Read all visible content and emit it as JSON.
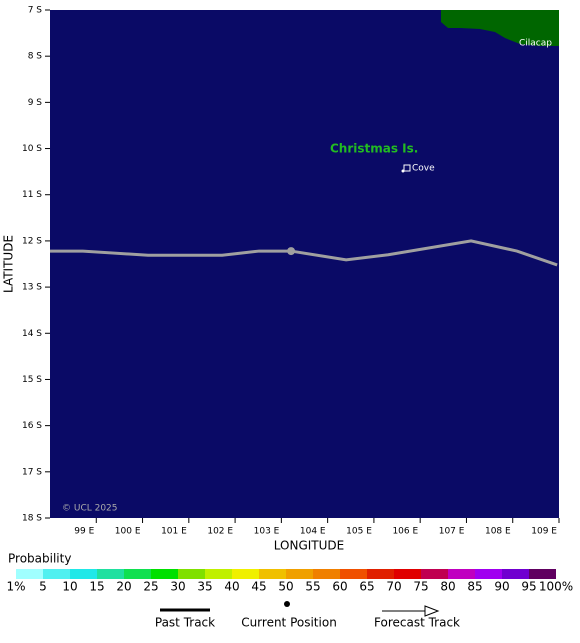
{
  "map": {
    "xlim": [
      98,
      109
    ],
    "ylim": [
      -7,
      -18
    ],
    "xticks": [
      {
        "value": 99,
        "label": "99 E"
      },
      {
        "value": 100,
        "label": "100 E"
      },
      {
        "value": 101,
        "label": "101 E"
      },
      {
        "value": 102,
        "label": "102 E"
      },
      {
        "value": 103,
        "label": "103 E"
      },
      {
        "value": 104,
        "label": "104 E"
      },
      {
        "value": 105,
        "label": "105 E"
      },
      {
        "value": 106,
        "label": "106 E"
      },
      {
        "value": 107,
        "label": "107 E"
      },
      {
        "value": 108,
        "label": "108 E"
      },
      {
        "value": 109,
        "label": "109 E"
      }
    ],
    "yticks": [
      {
        "value": -7,
        "label": "7 S"
      },
      {
        "value": -8,
        "label": "8 S"
      },
      {
        "value": -9,
        "label": "9 S"
      },
      {
        "value": -10,
        "label": "10 S"
      },
      {
        "value": -11,
        "label": "11 S"
      },
      {
        "value": -12,
        "label": "12 S"
      },
      {
        "value": -13,
        "label": "13 S"
      },
      {
        "value": -14,
        "label": "14 S"
      },
      {
        "value": -15,
        "label": "15 S"
      },
      {
        "value": -16,
        "label": "16 S"
      },
      {
        "value": -17,
        "label": "17 S"
      },
      {
        "value": -18,
        "label": "18 S"
      }
    ],
    "xlabel": "LONGITUDE",
    "ylabel": "LATITUDE",
    "track": {
      "color": "#a0a0a0",
      "lon": [
        98.0,
        98.71,
        100.12,
        101.72,
        102.52,
        103.21,
        104.4,
        105.31,
        107.1,
        108.09,
        108.96
      ],
      "lat": [
        -12.22,
        -12.22,
        -12.31,
        -12.31,
        -12.22,
        -12.22,
        -12.41,
        -12.3,
        -12.0,
        -12.22,
        -12.52
      ]
    },
    "current_position": {
      "lon": 103.21,
      "lat": -12.22
    },
    "places": [
      {
        "name": "Christmas Is.",
        "color": "#22bb22"
      },
      {
        "name": "Cove",
        "color": "#ffffff"
      },
      {
        "name": "Cilacap",
        "color": "#ffffff"
      }
    ],
    "copyright": "© UCL 2025"
  },
  "legend": {
    "title": "Probability",
    "labels": [
      "1%",
      "5",
      "10",
      "15",
      "20",
      "25",
      "30",
      "35",
      "40",
      "45",
      "50",
      "55",
      "60",
      "65",
      "70",
      "75",
      "80",
      "85",
      "90",
      "95",
      "100%"
    ],
    "colors": [
      "#a0ffff",
      "#50f0f0",
      "#20e8e8",
      "#20e0a0",
      "#10e050",
      "#00e000",
      "#80e000",
      "#c0f000",
      "#f0f000",
      "#f0c000",
      "#f0a000",
      "#f08000",
      "#f05000",
      "#e02000",
      "#e00000",
      "#c00050",
      "#c000c0",
      "#a000f0",
      "#7000d0",
      "#600060"
    ],
    "items": [
      "Past Track",
      "Current Position",
      "Forecast Track"
    ]
  }
}
